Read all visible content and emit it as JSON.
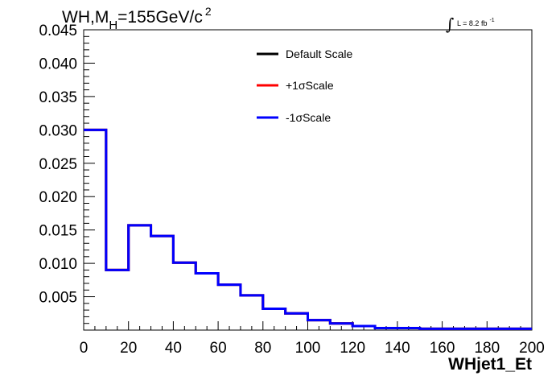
{
  "chart_data": {
    "type": "line",
    "title_main": "WH,M",
    "title_sub": "H",
    "title_rest": "=155GeV/c",
    "title_sup": "2",
    "lumi_integral": "∫",
    "lumi_text": "L = 8.2 fb",
    "lumi_sup": "-1",
    "xlabel": "WHjet1_Et",
    "ylabel": "",
    "xlim": [
      0,
      200
    ],
    "ylim": [
      0,
      0.045
    ],
    "x_ticks": [
      "0",
      "20",
      "40",
      "60",
      "80",
      "100",
      "120",
      "140",
      "160",
      "180",
      "200"
    ],
    "x_tick_values": [
      0,
      20,
      40,
      60,
      80,
      100,
      120,
      140,
      160,
      180,
      200
    ],
    "y_ticks": [
      "0.005",
      "0.010",
      "0.015",
      "0.020",
      "0.025",
      "0.030",
      "0.035",
      "0.040",
      "0.045"
    ],
    "y_tick_values": [
      0.005,
      0.01,
      0.015,
      0.02,
      0.025,
      0.03,
      0.035,
      0.04,
      0.045
    ],
    "bin_edges": [
      0,
      10,
      20,
      30,
      40,
      50,
      60,
      70,
      80,
      90,
      100,
      110,
      120,
      130,
      140,
      150,
      160,
      170,
      180,
      190,
      200
    ],
    "series": [
      {
        "name": "Default Scale",
        "color": "#000000",
        "values": [
          0.03,
          0.009,
          0.0157,
          0.0141,
          0.0101,
          0.0085,
          0.0068,
          0.0052,
          0.0032,
          0.0025,
          0.0015,
          0.001,
          0.0006,
          0.0003,
          0.0003,
          0.0002,
          0.0002,
          0.0002,
          0.0002,
          0.0002
        ]
      },
      {
        "name": "+1σScale",
        "color": "#ff0000",
        "values": [
          0.03,
          0.009,
          0.0157,
          0.0141,
          0.0101,
          0.0085,
          0.0068,
          0.0052,
          0.0032,
          0.0025,
          0.0015,
          0.001,
          0.0006,
          0.0003,
          0.0003,
          0.0002,
          0.0002,
          0.0002,
          0.0002,
          0.0002
        ]
      },
      {
        "name": "-1σScale",
        "color": "#0000ff",
        "values": [
          0.03,
          0.009,
          0.0157,
          0.0141,
          0.0101,
          0.0085,
          0.0068,
          0.0052,
          0.0032,
          0.0025,
          0.0015,
          0.001,
          0.0006,
          0.0003,
          0.0003,
          0.0002,
          0.0002,
          0.0002,
          0.0002,
          0.0002
        ]
      }
    ],
    "legend_placement": "top-center",
    "grid": false
  }
}
